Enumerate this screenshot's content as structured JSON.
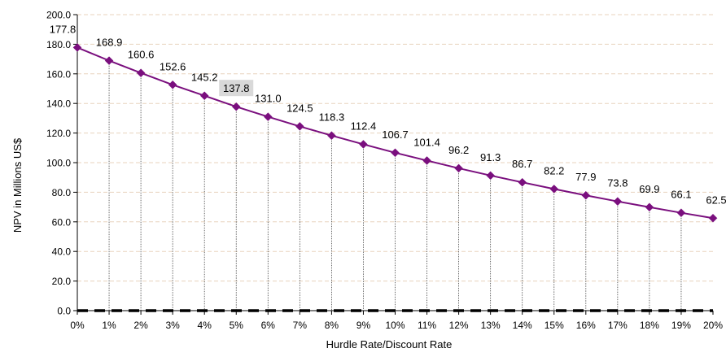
{
  "chart_data": {
    "type": "line",
    "title": "",
    "xlabel": "Hurdle Rate/Discount Rate",
    "ylabel": "NPV in Millions US$",
    "ylim": [
      0,
      200
    ],
    "yticks": [
      "0.0",
      "20.0",
      "40.0",
      "60.0",
      "80.0",
      "100.0",
      "120.0",
      "140.0",
      "160.0",
      "180.0",
      "200.0"
    ],
    "categories": [
      "0%",
      "1%",
      "2%",
      "3%",
      "4%",
      "5%",
      "6%",
      "7%",
      "8%",
      "9%",
      "10%",
      "11%",
      "12%",
      "13%",
      "14%",
      "15%",
      "16%",
      "17%",
      "18%",
      "19%",
      "20%"
    ],
    "series": [
      {
        "values": [
          177.8,
          168.9,
          160.6,
          152.6,
          145.2,
          137.8,
          131.0,
          124.5,
          118.3,
          112.4,
          106.7,
          101.4,
          96.2,
          91.3,
          86.7,
          82.2,
          77.9,
          73.8,
          69.9,
          66.1,
          62.5
        ],
        "labels": [
          "177.8",
          "168.9",
          "160.6",
          "152.6",
          "145.2",
          "137.8",
          "131.0",
          "124.5",
          "118.3",
          "112.4",
          "106.7",
          "101.4",
          "96.2",
          "91.3",
          "86.7",
          "82.2",
          "77.9",
          "73.8",
          "69.9",
          "66.1",
          "62.5"
        ],
        "color": "#7a0f7e"
      },
      {
        "values": [
          0,
          0,
          0,
          0,
          0,
          0,
          0,
          0,
          0,
          0,
          0,
          0,
          0,
          0,
          0,
          0,
          0,
          0,
          0,
          0,
          0
        ],
        "color": "#000000",
        "style": "dashed"
      }
    ],
    "highlighted_label_index": 5,
    "highlight_color": "#d9d9d9",
    "grid": true,
    "legend": "none"
  }
}
